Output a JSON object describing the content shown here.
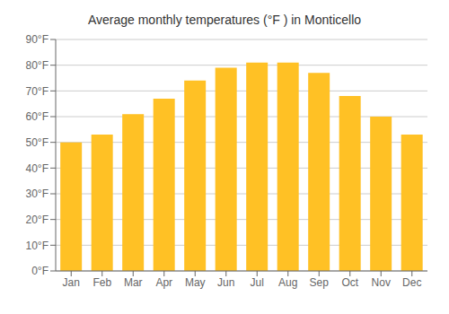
{
  "chart_data": {
    "type": "bar",
    "title": "Average monthly temperatures (°F ) in Monticello",
    "categories": [
      "Jan",
      "Feb",
      "Mar",
      "Apr",
      "May",
      "Jun",
      "Jul",
      "Aug",
      "Sep",
      "Oct",
      "Nov",
      "Dec"
    ],
    "values": [
      50,
      53,
      61,
      67,
      74,
      79,
      81,
      81,
      77,
      68,
      60,
      53
    ],
    "color": "#FFC125",
    "ylim": [
      0,
      90
    ],
    "yticks": [
      {
        "value": 0,
        "label": "0°F"
      },
      {
        "value": 10,
        "label": "10°F"
      },
      {
        "value": 20,
        "label": "20°F"
      },
      {
        "value": 30,
        "label": "30°F"
      },
      {
        "value": 40,
        "label": "40°F"
      },
      {
        "value": 50,
        "label": "50°F"
      },
      {
        "value": 60,
        "label": "60°F"
      },
      {
        "value": 70,
        "label": "70°F"
      },
      {
        "value": 80,
        "label": "80°F"
      },
      {
        "value": 90,
        "label": "90°F"
      }
    ],
    "grid": true
  }
}
